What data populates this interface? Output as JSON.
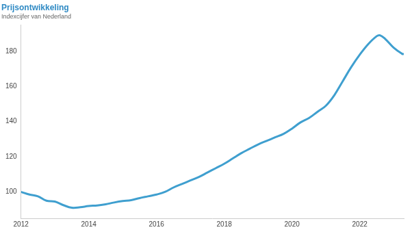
{
  "chart_data": {
    "type": "line",
    "title": "Prijsontwikkeling",
    "subtitle": "Indexcijfer van Nederland",
    "x": [
      2012.0,
      2012.25,
      2012.5,
      2012.75,
      2013.0,
      2013.25,
      2013.5,
      2013.75,
      2014.0,
      2014.25,
      2014.5,
      2014.75,
      2015.0,
      2015.25,
      2015.5,
      2015.75,
      2016.0,
      2016.25,
      2016.5,
      2016.75,
      2017.0,
      2017.25,
      2017.5,
      2017.75,
      2018.0,
      2018.25,
      2018.5,
      2018.75,
      2019.0,
      2019.25,
      2019.5,
      2019.75,
      2020.0,
      2020.25,
      2020.5,
      2020.75,
      2021.0,
      2021.25,
      2021.5,
      2021.75,
      2022.0,
      2022.25,
      2022.5,
      2022.6,
      2022.75,
      2023.0,
      2023.25,
      2023.3
    ],
    "values": [
      100,
      98.5,
      97.5,
      95,
      94.5,
      92.5,
      91,
      91.3,
      92,
      92.3,
      93,
      94,
      94.8,
      95.3,
      96.5,
      97.5,
      98.5,
      100,
      102.5,
      104.5,
      106.5,
      108.5,
      111,
      113.5,
      116,
      119,
      122,
      124.5,
      127,
      129,
      131,
      133,
      136,
      139.5,
      142,
      145.5,
      149,
      155,
      163,
      171,
      178,
      184,
      188.5,
      189,
      187,
      182,
      178.5,
      178.3
    ],
    "color": "#3f9fcf",
    "xlim": [
      2012,
      2023.3
    ],
    "xticks": [
      2012,
      2014,
      2016,
      2018,
      2020,
      2022
    ],
    "ylim": [
      85,
      195
    ],
    "yticks": [
      100,
      120,
      140,
      160,
      180
    ],
    "grid": false
  }
}
